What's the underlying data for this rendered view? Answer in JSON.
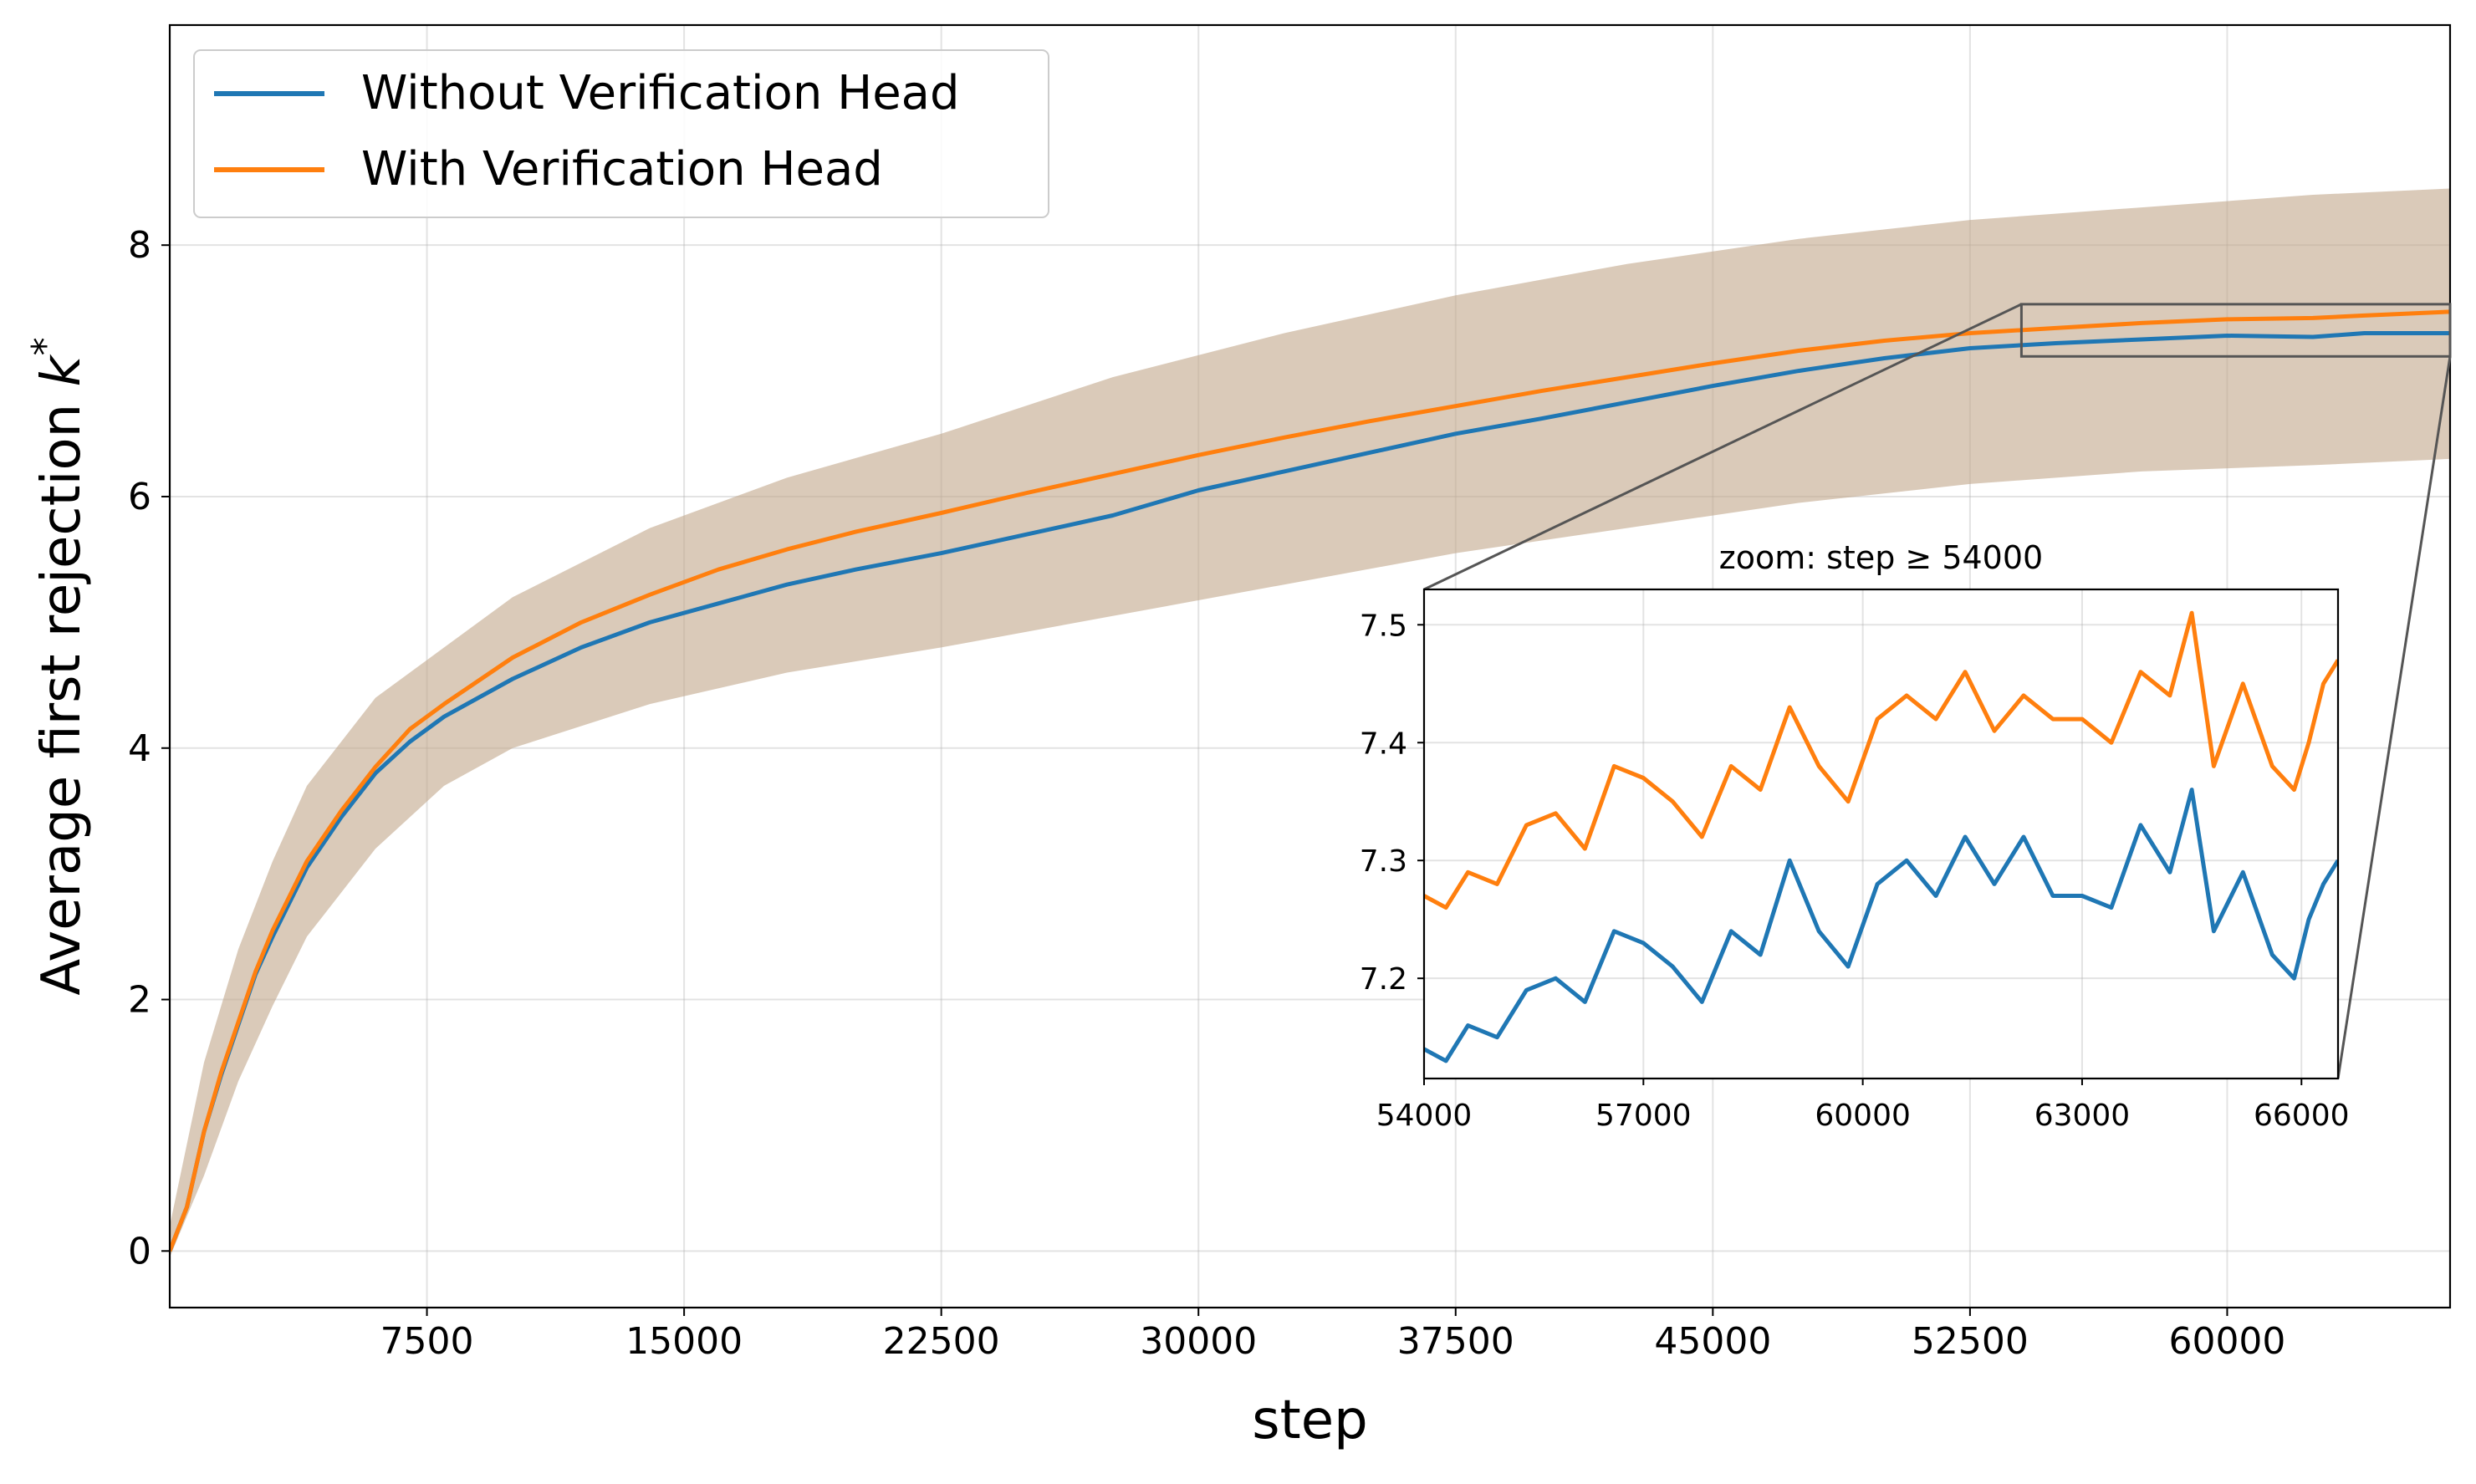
{
  "chart_data": [
    {
      "type": "line",
      "title": "",
      "xlabel": "step",
      "ylabel": "Average first rejection k*",
      "ylabel_main": "Average first rejection ",
      "ylabel_var": "k",
      "ylabel_sup": "*",
      "xlim": [
        0,
        66500
      ],
      "ylim": [
        -0.45,
        9.75
      ],
      "x_ticks": [
        7500,
        15000,
        22500,
        30000,
        37500,
        45000,
        52500,
        60000
      ],
      "x_tick_labels": [
        "7500",
        "15000",
        "22500",
        "30000",
        "37500",
        "45000",
        "52500",
        "60000"
      ],
      "y_ticks": [
        0,
        2,
        4,
        6,
        8
      ],
      "y_tick_labels": [
        "0",
        "2",
        "4",
        "6",
        "8"
      ],
      "grid": true,
      "legend": {
        "position": "top-left",
        "entries": [
          "Without Verification Head",
          "With Verification Head"
        ]
      },
      "series": [
        {
          "name": "Without Verification Head",
          "color": "#1f77b4",
          "x": [
            0,
            500,
            1000,
            1500,
            2000,
            2500,
            3000,
            4000,
            5000,
            6000,
            7000,
            8000,
            10000,
            12000,
            14000,
            16000,
            18000,
            20000,
            22500,
            25000,
            27500,
            30000,
            32500,
            35000,
            37500,
            40000,
            42500,
            45000,
            47500,
            50000,
            52500,
            55000,
            57500,
            60000,
            62500,
            64000,
            66500
          ],
          "values": [
            0.0,
            0.35,
            0.95,
            1.4,
            1.8,
            2.2,
            2.5,
            3.05,
            3.45,
            3.8,
            4.05,
            4.25,
            4.55,
            4.8,
            5.0,
            5.15,
            5.3,
            5.42,
            5.55,
            5.7,
            5.85,
            6.05,
            6.2,
            6.35,
            6.5,
            6.62,
            6.75,
            6.88,
            7.0,
            7.1,
            7.18,
            7.22,
            7.25,
            7.28,
            7.27,
            7.3,
            7.3
          ]
        },
        {
          "name": "With Verification Head",
          "color": "#ff7f0e",
          "x": [
            0,
            500,
            1000,
            1500,
            2000,
            2500,
            3000,
            4000,
            5000,
            6000,
            7000,
            8000,
            10000,
            12000,
            14000,
            16000,
            18000,
            20000,
            22500,
            25000,
            27500,
            30000,
            32500,
            35000,
            37500,
            40000,
            42500,
            45000,
            47500,
            50000,
            52500,
            55000,
            57500,
            60000,
            62500,
            64000,
            66500
          ],
          "values": [
            0.0,
            0.35,
            0.95,
            1.42,
            1.82,
            2.22,
            2.55,
            3.1,
            3.5,
            3.85,
            4.15,
            4.35,
            4.72,
            5.0,
            5.22,
            5.42,
            5.58,
            5.72,
            5.87,
            6.03,
            6.18,
            6.33,
            6.47,
            6.6,
            6.72,
            6.84,
            6.95,
            7.06,
            7.16,
            7.24,
            7.3,
            7.34,
            7.38,
            7.41,
            7.42,
            7.44,
            7.47
          ]
        }
      ],
      "band": {
        "color": "#c2a68a",
        "x": [
          0,
          1000,
          2000,
          3000,
          4000,
          6000,
          8000,
          10000,
          14000,
          18000,
          22500,
          27500,
          32500,
          37500,
          42500,
          47500,
          52500,
          57500,
          62500,
          66500
        ],
        "upper": [
          0.2,
          1.5,
          2.4,
          3.1,
          3.7,
          4.4,
          4.8,
          5.2,
          5.75,
          6.15,
          6.5,
          6.95,
          7.3,
          7.6,
          7.85,
          8.05,
          8.2,
          8.3,
          8.4,
          8.45
        ],
        "lower": [
          -0.05,
          0.6,
          1.35,
          1.95,
          2.5,
          3.2,
          3.7,
          4.0,
          4.35,
          4.6,
          4.8,
          5.05,
          5.3,
          5.55,
          5.75,
          5.95,
          6.1,
          6.2,
          6.25,
          6.3
        ]
      }
    },
    {
      "type": "line",
      "title": "zoom: step ≥ 54000",
      "xlabel": "",
      "ylabel": "",
      "xlim": [
        54000,
        66500
      ],
      "ylim": [
        7.115,
        7.53
      ],
      "x_ticks": [
        54000,
        57000,
        60000,
        63000,
        66000
      ],
      "x_tick_labels": [
        "54000",
        "57000",
        "60000",
        "63000",
        "66000"
      ],
      "y_ticks": [
        7.2,
        7.3,
        7.4,
        7.5
      ],
      "y_tick_labels": [
        "7.2",
        "7.3",
        "7.4",
        "7.5"
      ],
      "grid": true,
      "series": [
        {
          "name": "Without Verification Head",
          "color": "#1f77b4",
          "x": [
            54000,
            54300,
            54600,
            55000,
            55400,
            55800,
            56200,
            56600,
            57000,
            57400,
            57800,
            58200,
            58600,
            59000,
            59400,
            59800,
            60200,
            60600,
            61000,
            61400,
            61800,
            62200,
            62600,
            63000,
            63400,
            63800,
            64200,
            64500,
            64800,
            65200,
            65600,
            65900,
            66100,
            66300,
            66500
          ],
          "values": [
            7.14,
            7.13,
            7.16,
            7.15,
            7.19,
            7.2,
            7.18,
            7.24,
            7.23,
            7.21,
            7.18,
            7.24,
            7.22,
            7.3,
            7.24,
            7.21,
            7.28,
            7.3,
            7.27,
            7.32,
            7.28,
            7.32,
            7.27,
            7.27,
            7.26,
            7.33,
            7.29,
            7.36,
            7.24,
            7.29,
            7.22,
            7.2,
            7.25,
            7.28,
            7.3
          ]
        },
        {
          "name": "With Verification Head",
          "color": "#ff7f0e",
          "x": [
            54000,
            54300,
            54600,
            55000,
            55400,
            55800,
            56200,
            56600,
            57000,
            57400,
            57800,
            58200,
            58600,
            59000,
            59400,
            59800,
            60200,
            60600,
            61000,
            61400,
            61800,
            62200,
            62600,
            63000,
            63400,
            63800,
            64200,
            64500,
            64800,
            65200,
            65600,
            65900,
            66100,
            66300,
            66500
          ],
          "values": [
            7.27,
            7.26,
            7.29,
            7.28,
            7.33,
            7.34,
            7.31,
            7.38,
            7.37,
            7.35,
            7.32,
            7.38,
            7.36,
            7.43,
            7.38,
            7.35,
            7.42,
            7.44,
            7.42,
            7.46,
            7.41,
            7.44,
            7.42,
            7.42,
            7.4,
            7.46,
            7.44,
            7.51,
            7.38,
            7.45,
            7.38,
            7.36,
            7.4,
            7.45,
            7.47
          ]
        }
      ]
    }
  ]
}
